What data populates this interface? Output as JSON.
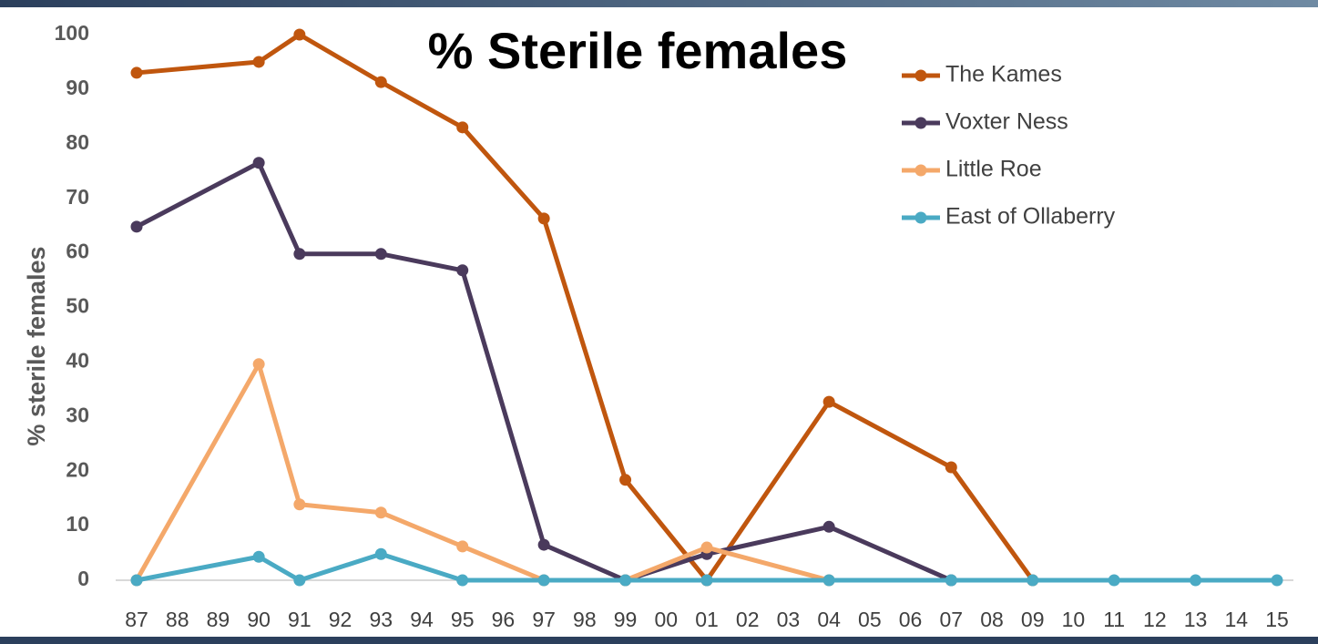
{
  "chart_data": {
    "type": "line",
    "title": "% Sterile females",
    "y_label": "% sterile females",
    "categories": [
      "87",
      "88",
      "89",
      "90",
      "91",
      "92",
      "93",
      "94",
      "95",
      "96",
      "97",
      "98",
      "99",
      "00",
      "01",
      "02",
      "03",
      "04",
      "05",
      "06",
      "07",
      "08",
      "09",
      "10",
      "11",
      "12",
      "13",
      "14",
      "15"
    ],
    "ylim": [
      0,
      100
    ],
    "yticks": [
      0,
      10,
      20,
      30,
      40,
      50,
      60,
      70,
      80,
      90,
      100
    ],
    "grid": false,
    "legend": "upper right",
    "series": [
      {
        "name": "The Kames",
        "color": "#c0560e",
        "x": [
          "87",
          "90",
          "91",
          "93",
          "95",
          "97",
          "99",
          "01",
          "04",
          "07",
          "09"
        ],
        "values": [
          93,
          95,
          100,
          91.3,
          83,
          66.3,
          18.4,
          0,
          32.7,
          20.7,
          0
        ]
      },
      {
        "name": "Voxter Ness",
        "color": "#4a3a5c",
        "x": [
          "87",
          "90",
          "91",
          "93",
          "95",
          "97",
          "99",
          "01",
          "04",
          "07"
        ],
        "values": [
          64.8,
          76.5,
          59.8,
          59.8,
          56.8,
          6.5,
          0,
          4.8,
          9.8,
          0
        ]
      },
      {
        "name": "Little Roe",
        "color": "#f4a86a",
        "x": [
          "87",
          "90",
          "91",
          "93",
          "95",
          "97",
          "99",
          "01",
          "04"
        ],
        "values": [
          0,
          39.6,
          13.9,
          12.4,
          6.2,
          0,
          0,
          6,
          0
        ]
      },
      {
        "name": "East of Ollaberry",
        "color": "#4aaac4",
        "x": [
          "87",
          "90",
          "91",
          "93",
          "95",
          "97",
          "99",
          "01",
          "04",
          "07",
          "09",
          "11",
          "13",
          "15"
        ],
        "values": [
          0,
          4.3,
          0,
          4.8,
          0,
          0,
          0,
          0,
          0,
          0,
          0,
          0,
          0,
          0
        ]
      }
    ]
  }
}
